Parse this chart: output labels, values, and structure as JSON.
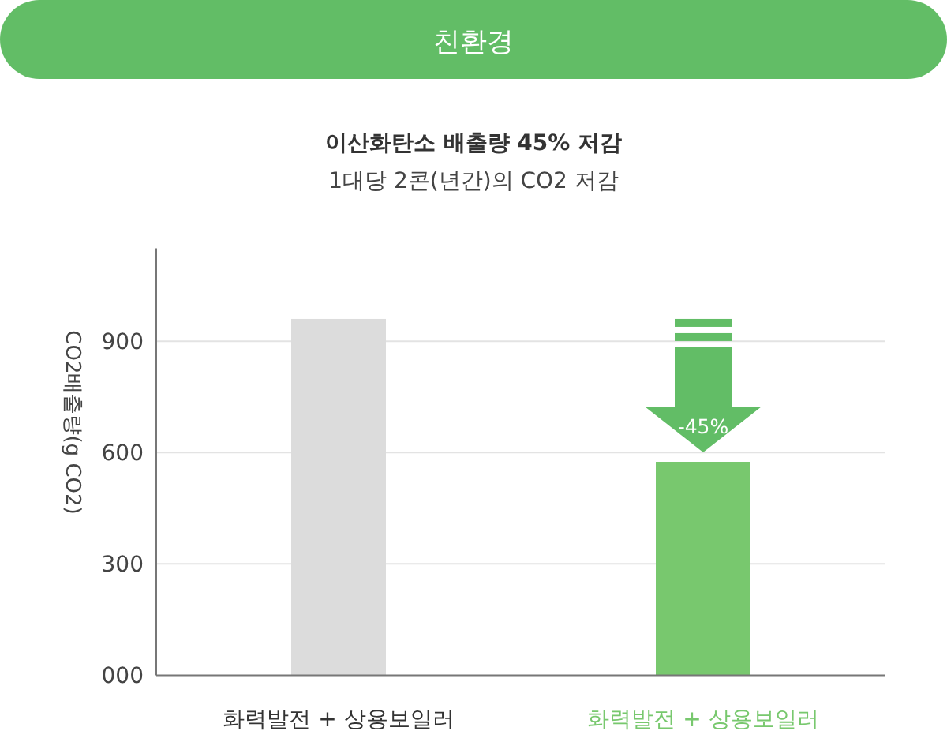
{
  "chart_data": {
    "type": "bar",
    "title": "친환경",
    "subtitle": "이산화탄소 배출량 45% 저감",
    "annotations": [
      "1대당 2콘(년간)의 CO2 저감",
      "-45%"
    ],
    "ylabel": "CO2배출량(g CO2)",
    "categories": [
      "화력발전 + 상용보일러",
      "화력발전 + 상용보일러"
    ],
    "values": [
      960,
      575
    ],
    "colors": [
      "#dcdcdc",
      "#78c86e"
    ],
    "ylim": [
      0,
      1150
    ],
    "yticks": [
      {
        "value": 0,
        "label": "000"
      },
      300,
      600,
      900
    ],
    "grid": "y"
  }
}
